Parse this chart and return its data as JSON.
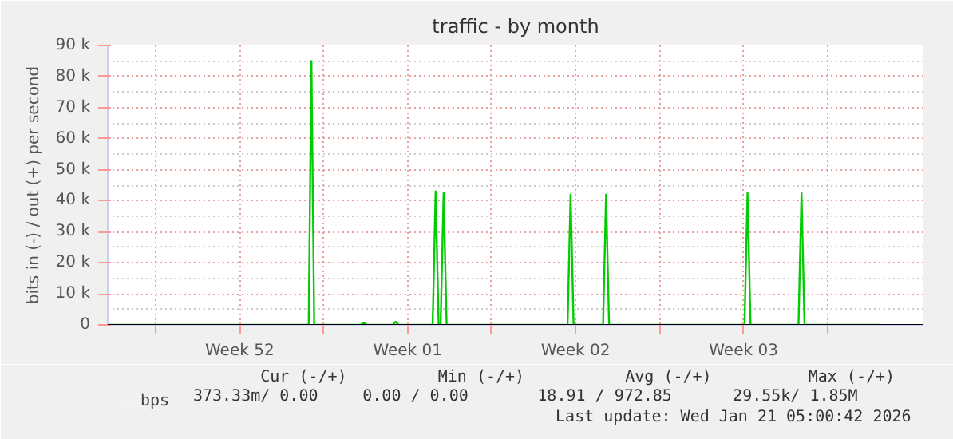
{
  "chart_data": {
    "type": "line",
    "title": "traffic - by month",
    "ylabel": "bits in (-) / out (+) per second",
    "xlim": [
      "2025-12-20T00:00",
      "2026-01-23T00:00"
    ],
    "xticks": [
      {
        "value": "2025-12-22T00:00",
        "label": null
      },
      {
        "value": "2025-12-25T12:00",
        "label": "Week 52"
      },
      {
        "value": "2025-12-29T00:00",
        "label": null
      },
      {
        "value": "2026-01-01T12:00",
        "label": "Week 01"
      },
      {
        "value": "2026-01-05T00:00",
        "label": null
      },
      {
        "value": "2026-01-08T12:00",
        "label": "Week 02"
      },
      {
        "value": "2026-01-12T00:00",
        "label": null
      },
      {
        "value": "2026-01-15T12:00",
        "label": "Week 03"
      },
      {
        "value": "2026-01-19T00:00",
        "label": null
      }
    ],
    "ylim": [
      0,
      90000
    ],
    "yticks": [
      {
        "value": 0,
        "label": "0"
      },
      {
        "value": 10000,
        "label": "10 k"
      },
      {
        "value": 20000,
        "label": "20 k"
      },
      {
        "value": 30000,
        "label": "30 k"
      },
      {
        "value": 40000,
        "label": "40 k"
      },
      {
        "value": 50000,
        "label": "50 k"
      },
      {
        "value": 60000,
        "label": "60 k"
      },
      {
        "value": 70000,
        "label": "70 k"
      },
      {
        "value": 80000,
        "label": "80 k"
      },
      {
        "value": 90000,
        "label": "90 k"
      }
    ],
    "grid": true,
    "legend": "bottom",
    "marker": "none",
    "line_style": "solid",
    "x": [
      "2025-12-20T00:00",
      "2025-12-28T09:00",
      "2025-12-28T11:45",
      "2025-12-28T14:30",
      "2025-12-30T13:00",
      "2025-12-30T16:00",
      "2025-12-30T19:00",
      "2025-12-31T21:00",
      "2026-01-01T00:00",
      "2026-01-01T03:00",
      "2026-01-02T13:00",
      "2026-01-02T16:00",
      "2026-01-02T19:00",
      "2026-01-02T21:00",
      "2026-01-03T00:00",
      "2026-01-03T03:00",
      "2026-01-08T04:00",
      "2026-01-08T07:00",
      "2026-01-08T10:00",
      "2026-01-09T15:30",
      "2026-01-09T18:30",
      "2026-01-09T21:30",
      "2026-01-15T13:00",
      "2026-01-15T16:00",
      "2026-01-15T19:00",
      "2026-01-17T19:00",
      "2026-01-17T22:00",
      "2026-01-18T01:00",
      "2026-01-21T05:00"
    ],
    "series": [
      {
        "name": "bps",
        "color": "#00cc00",
        "values": [
          0,
          0,
          85000,
          0,
          0,
          700,
          0,
          0,
          1000,
          0,
          0,
          43000,
          0,
          0,
          42500,
          0,
          0,
          42000,
          0,
          0,
          42000,
          0,
          0,
          42500,
          0,
          0,
          42500,
          0,
          0
        ]
      }
    ],
    "annotations": [
      "Cur (-/+)",
      "Min (-/+)",
      "Avg (-/+)",
      "Max (-/+)",
      "373.33m/    0.00",
      "0.00 /     0.00",
      "18.91 /   972.85",
      "29.55k/    1.85M",
      "Last update: Wed Jan 21 05:00:42 2026"
    ]
  }
}
